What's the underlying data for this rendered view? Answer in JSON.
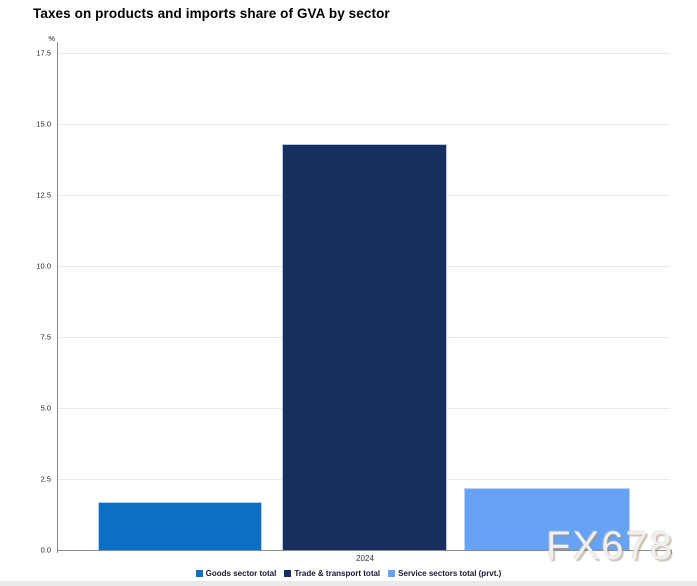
{
  "watermark": "FX678",
  "chart_data": {
    "type": "bar",
    "title": "Taxes on products and imports share of GVA by sector",
    "categories": [
      "2024"
    ],
    "series": [
      {
        "name": "Goods sector total",
        "color": "#0b6fc4",
        "values": [
          1.7
        ]
      },
      {
        "name": "Trade & transport total",
        "color": "#172f5f",
        "values": [
          14.3
        ]
      },
      {
        "name": "Service sectors total (prvt.)",
        "color": "#66a3f4",
        "values": [
          2.2
        ]
      }
    ],
    "xlabel": "",
    "ylabel": "%",
    "ylim": [
      0,
      17.5
    ],
    "yticks": [
      17.5,
      15.0,
      12.5,
      10.0,
      7.5,
      5.0,
      2.5,
      0.0
    ],
    "grid": true,
    "legend_position": "bottom"
  }
}
